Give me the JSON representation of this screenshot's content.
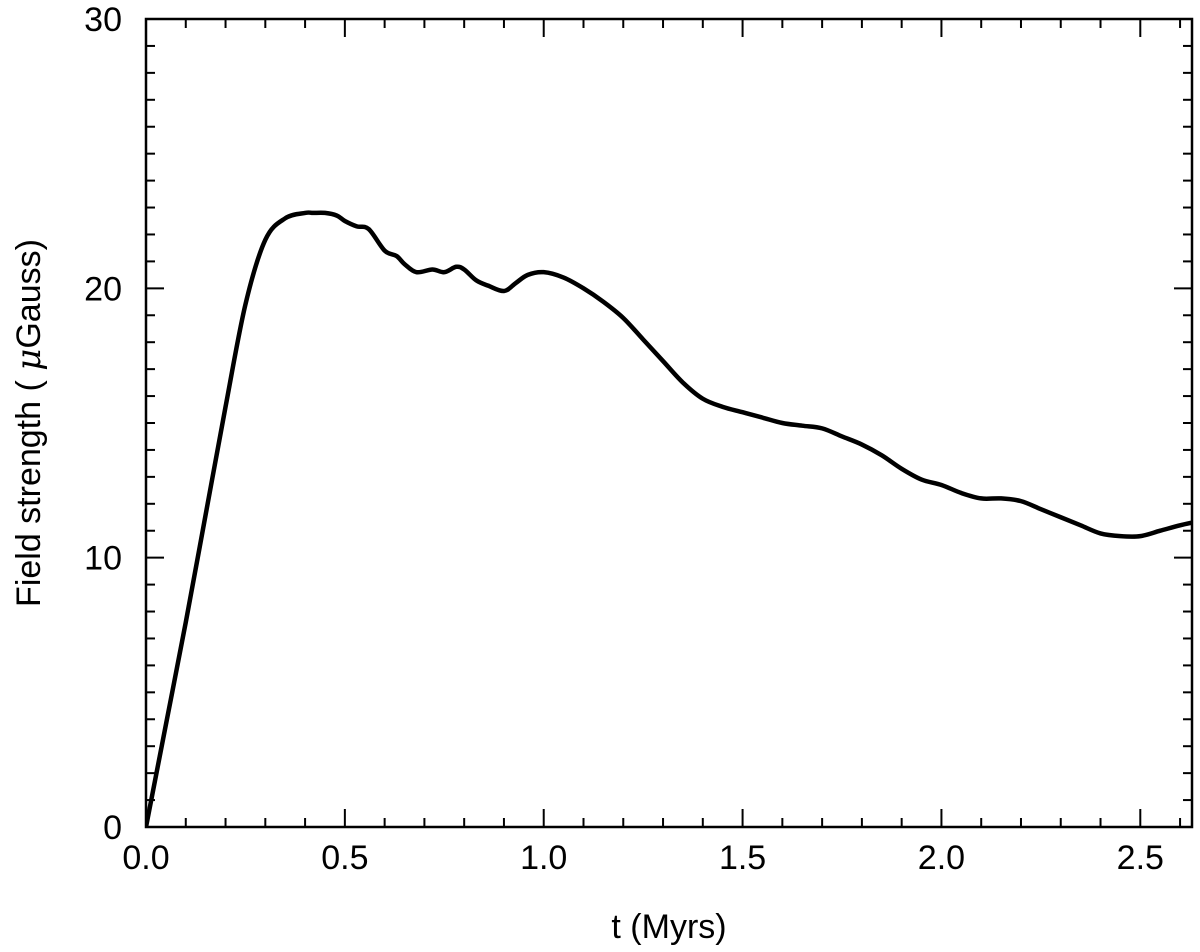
{
  "chart_data": {
    "type": "line",
    "title": "",
    "xlabel": "t (Myrs)",
    "ylabel": {
      "prefix": "Field strength ( ",
      "symbol": "μ",
      "suffix": "Gauss)"
    },
    "xlim": [
      0.0,
      2.63
    ],
    "ylim": [
      0,
      30
    ],
    "x_ticks": [
      0.0,
      0.5,
      1.0,
      1.5,
      2.0,
      2.5
    ],
    "x_tick_labels": [
      "0.0",
      "0.5",
      "1.0",
      "1.5",
      "2.0",
      "2.5"
    ],
    "x_minor_step": 0.1,
    "y_ticks": [
      0,
      10,
      20,
      30
    ],
    "y_tick_labels": [
      "0",
      "10",
      "20",
      "30"
    ],
    "y_minor_step": 1,
    "grid": false,
    "legend": "none",
    "series": [
      {
        "color": "#000000",
        "x": [
          0.0,
          0.05,
          0.1,
          0.15,
          0.2,
          0.25,
          0.3,
          0.35,
          0.4,
          0.42,
          0.45,
          0.48,
          0.5,
          0.53,
          0.56,
          0.6,
          0.63,
          0.65,
          0.68,
          0.72,
          0.75,
          0.78,
          0.8,
          0.83,
          0.86,
          0.9,
          0.93,
          0.96,
          1.0,
          1.05,
          1.1,
          1.15,
          1.2,
          1.25,
          1.3,
          1.35,
          1.4,
          1.45,
          1.5,
          1.55,
          1.6,
          1.65,
          1.7,
          1.75,
          1.8,
          1.85,
          1.9,
          1.95,
          2.0,
          2.05,
          2.1,
          2.15,
          2.2,
          2.25,
          2.3,
          2.35,
          2.4,
          2.45,
          2.5,
          2.55,
          2.6,
          2.63
        ],
        "y": [
          0.0,
          3.8,
          7.6,
          11.6,
          15.6,
          19.4,
          21.8,
          22.6,
          22.8,
          22.8,
          22.8,
          22.7,
          22.5,
          22.3,
          22.2,
          21.4,
          21.2,
          20.9,
          20.6,
          20.7,
          20.6,
          20.8,
          20.7,
          20.3,
          20.1,
          19.9,
          20.2,
          20.5,
          20.6,
          20.4,
          20.0,
          19.5,
          18.9,
          18.1,
          17.3,
          16.5,
          15.9,
          15.6,
          15.4,
          15.2,
          15.0,
          14.9,
          14.8,
          14.5,
          14.2,
          13.8,
          13.3,
          12.9,
          12.7,
          12.4,
          12.2,
          12.2,
          12.1,
          11.8,
          11.5,
          11.2,
          10.9,
          10.8,
          10.8,
          11.0,
          11.2,
          11.3
        ]
      }
    ]
  }
}
